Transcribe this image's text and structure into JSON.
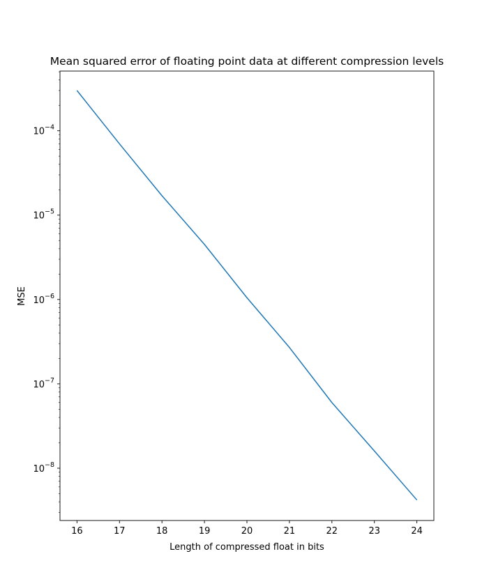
{
  "chart_data": {
    "type": "line",
    "title": "Mean squared error of floating point data at different compression levels",
    "xlabel": "Length of compressed float in bits",
    "ylabel": "MSE",
    "y_scale": "log",
    "xlim": [
      15.6,
      24.4
    ],
    "ylim": [
      2.4e-09,
      0.00051
    ],
    "x_ticks": [
      16,
      17,
      18,
      19,
      20,
      21,
      22,
      23,
      24
    ],
    "y_ticks": [
      {
        "value": 0.0001,
        "base": "10",
        "exp": "−4"
      },
      {
        "value": 1e-05,
        "base": "10",
        "exp": "−5"
      },
      {
        "value": 1e-06,
        "base": "10",
        "exp": "−6"
      },
      {
        "value": 1e-07,
        "base": "10",
        "exp": "−7"
      },
      {
        "value": 1e-08,
        "base": "10",
        "exp": "−8"
      }
    ],
    "grid": false,
    "legend": "none",
    "series": [
      {
        "color": "#1f77b4",
        "x": [
          16,
          17,
          18,
          19,
          20,
          21,
          22,
          23,
          24
        ],
        "y": [
          0.0003,
          7e-05,
          1.7e-05,
          4.5e-06,
          1.05e-06,
          2.7e-07,
          6e-08,
          1.6e-08,
          4.2e-09
        ]
      }
    ]
  }
}
